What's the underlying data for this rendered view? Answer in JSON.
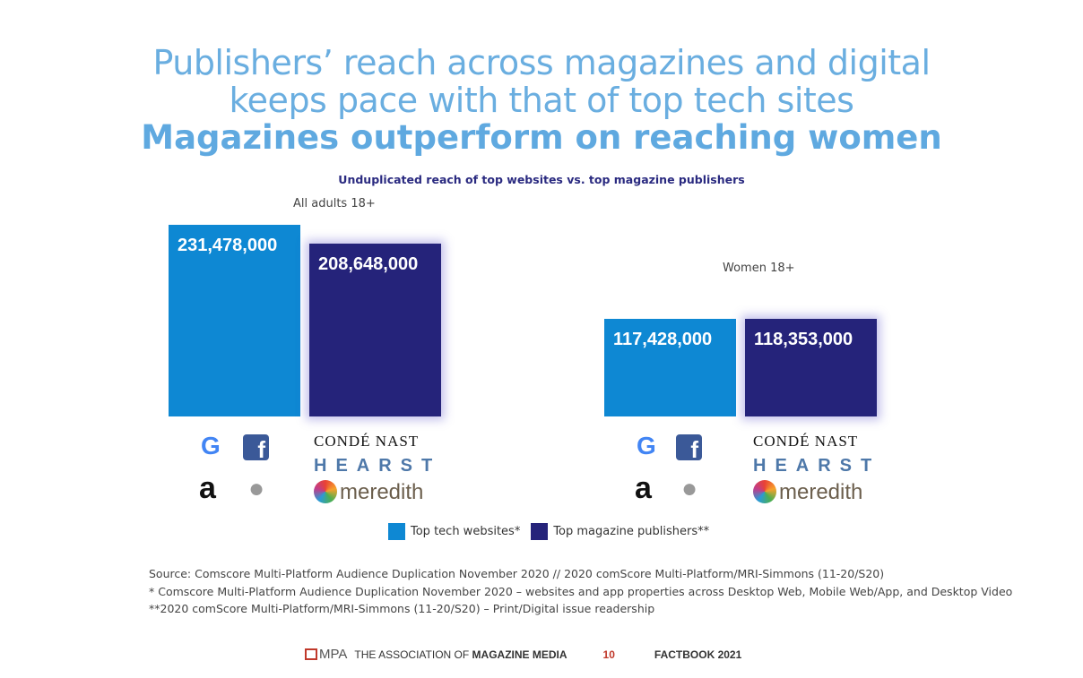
{
  "title": {
    "line1": "Publishers’ reach across magazines and digital",
    "line2": "keeps pace with that of top tech sites",
    "line3": "Magazines outperform on reaching women"
  },
  "chart_data": {
    "type": "bar",
    "title": "Unduplicated reach of top websites vs. top magazine publishers",
    "categories": [
      "All adults 18+",
      "Women 18+"
    ],
    "series": [
      {
        "name": "Top tech websites*",
        "color": "#0e88d3",
        "values": [
          231478000,
          117428000
        ],
        "labels": [
          "231,478,000",
          "117,428,000"
        ]
      },
      {
        "name": "Top magazine publishers**",
        "color": "#25237a",
        "values": [
          208648000,
          118353000
        ],
        "labels": [
          "208,648,000",
          "118,353,000"
        ]
      }
    ],
    "ylim": [
      0,
      250000000
    ]
  },
  "logos": {
    "tech": [
      "Google",
      "Facebook",
      "Amazon",
      "Apple"
    ],
    "publishers": [
      "CONDÉ NAST",
      "HEARST",
      "meredith"
    ]
  },
  "source": [
    "Source: Comscore Multi-Platform Audience Duplication November 2020 // 2020 comScore Multi-Platform/MRI-Simmons (11-20/S20)",
    "* Comscore Multi-Platform Audience Duplication November 2020 – websites and app properties across Desktop Web, Mobile Web/App, and Desktop Video",
    "**2020 comScore Multi-Platform/MRI-Simmons (11-20/S20) – Print/Digital issue readership"
  ],
  "footer": {
    "logo": "MPA",
    "assoc": "THE ASSOCIATION OF ",
    "assoc_bold": "MAGAZINE MEDIA",
    "page": "10",
    "book": "FACTBOOK 2021"
  }
}
